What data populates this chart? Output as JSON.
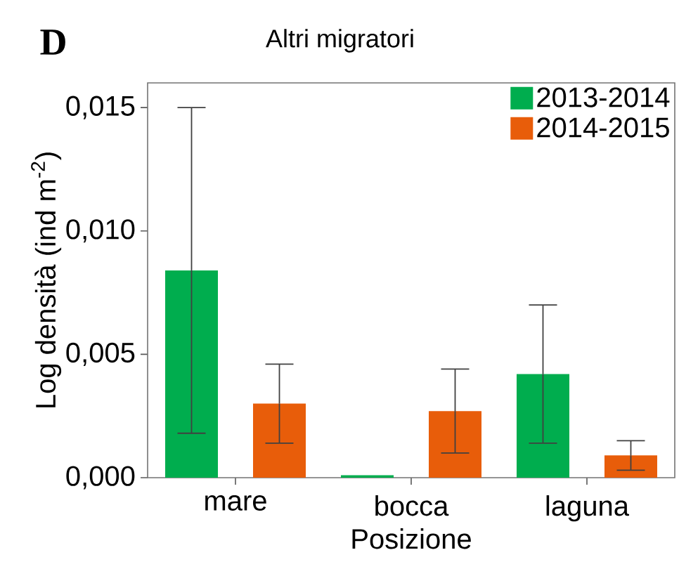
{
  "chart_data": {
    "type": "bar",
    "title": "Altri migratori",
    "xlabel": "Posizione",
    "ylabel": "Log densità (ind m$^{-2}$)",
    "annotations": [
      "D"
    ],
    "categories": [
      "mare",
      "bocca",
      "laguna"
    ],
    "series": [
      {
        "name": "2013-2014",
        "color": "#00ad4e",
        "values": [
          0.0084,
          0.0001,
          0.0042
        ],
        "errors": [
          0.0066,
          null,
          0.0028
        ]
      },
      {
        "name": "2014-2015",
        "color": "#e85d0a",
        "values": [
          0.003,
          0.0027,
          0.0009
        ],
        "errors": [
          0.0016,
          0.0017,
          0.0006
        ]
      }
    ],
    "ylim": [
      0,
      0.016
    ],
    "yticks": [
      {
        "value": 0,
        "label": "0,000"
      },
      {
        "value": 0.005,
        "label": "0,005"
      },
      {
        "value": 0.01,
        "label": "0,010"
      },
      {
        "value": 0.015,
        "label": "0,015"
      }
    ],
    "legend": "top right"
  }
}
